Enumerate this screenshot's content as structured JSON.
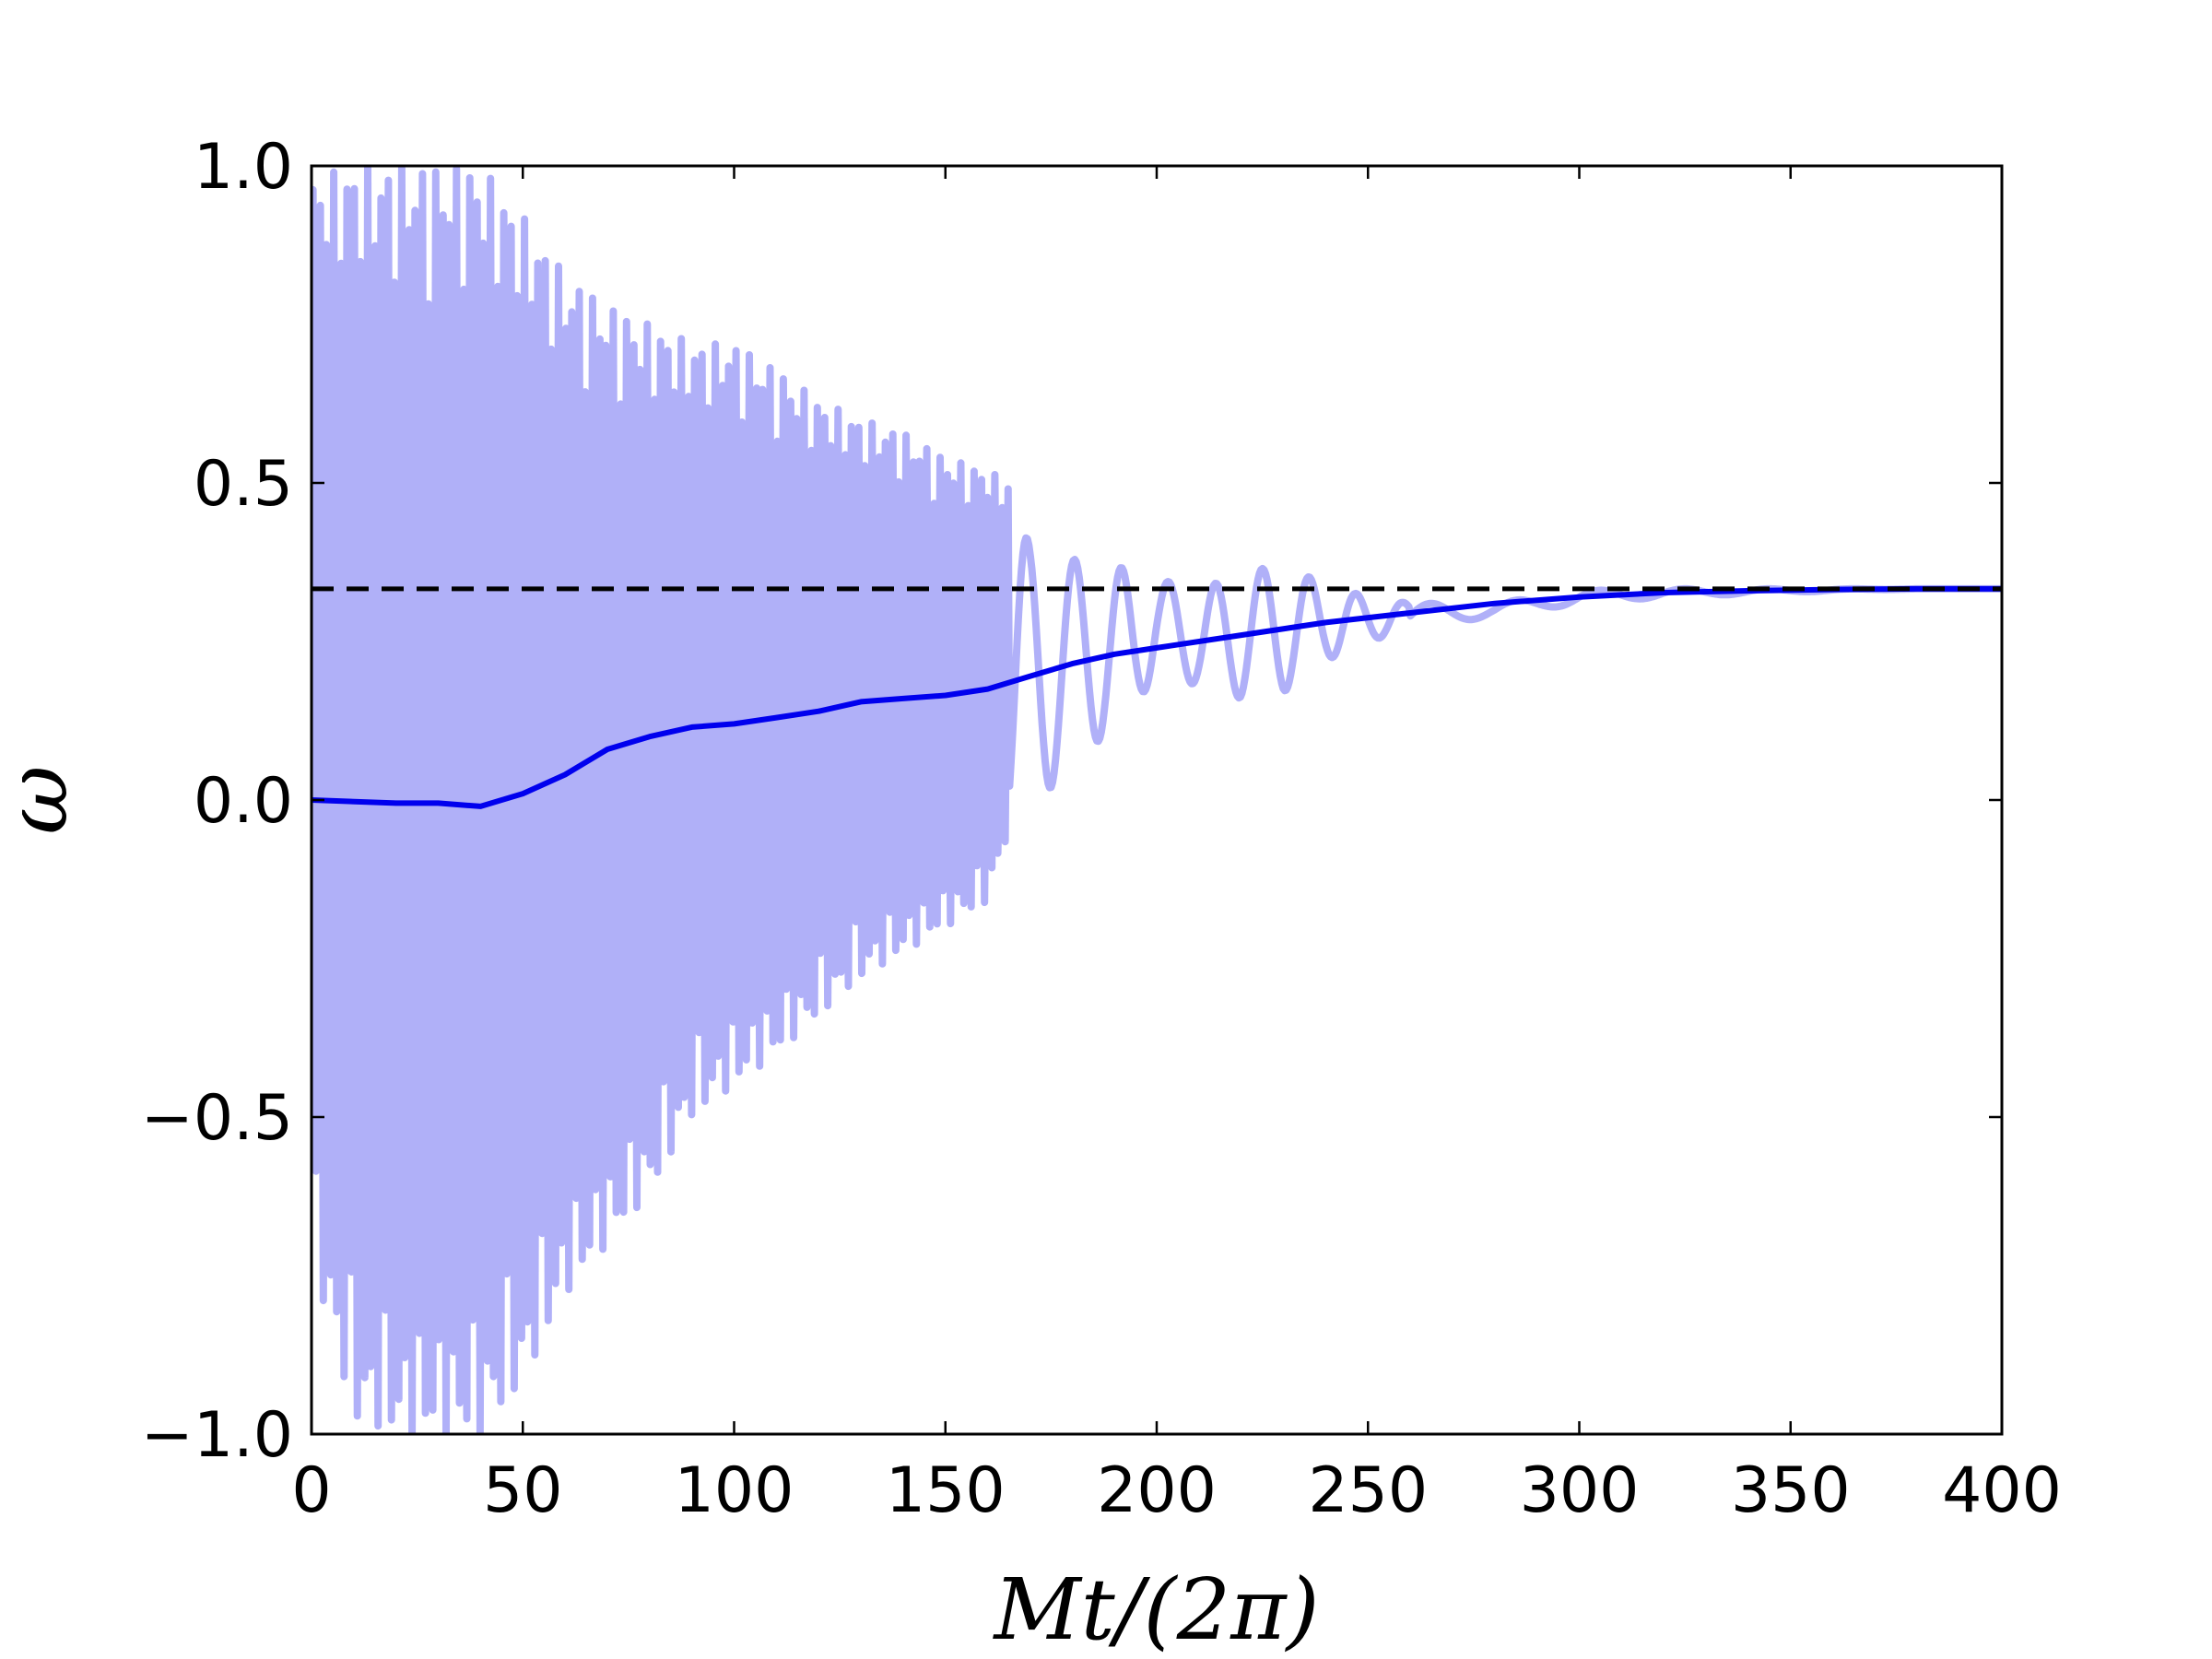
{
  "chart_data": {
    "type": "line",
    "title": "",
    "xlabel": "Mt/(2π)",
    "ylabel": "ω",
    "xlim": [
      0,
      400
    ],
    "ylim": [
      -1.0,
      1.0
    ],
    "xticks": [
      0,
      50,
      100,
      150,
      200,
      250,
      300,
      350,
      400
    ],
    "xtick_labels": [
      "0",
      "50",
      "100",
      "150",
      "200",
      "250",
      "300",
      "350",
      "400"
    ],
    "yticks": [
      -1.0,
      -0.5,
      0.0,
      0.5,
      1.0
    ],
    "ytick_labels": [
      "−1.0",
      "−0.5",
      "0.0",
      "0.5",
      "1.0"
    ],
    "grid": false,
    "legend": "none",
    "colors": {
      "oscillation": "#b0b0f8",
      "average": "#0000ee",
      "reference": "#000000"
    },
    "series": [
      {
        "role": "oscillating",
        "style": "thick light-blue oscillation",
        "envelope": {
          "x": [
            0,
            10,
            20,
            30,
            40,
            50,
            60,
            70,
            80,
            90,
            100,
            110,
            120,
            130,
            140,
            150,
            160,
            165,
            170,
            180,
            190,
            200,
            210,
            220,
            230,
            240,
            250,
            260,
            270,
            280,
            290,
            300,
            320,
            340,
            360,
            380,
            400
          ],
          "upper": [
            0.98,
            1.0,
            1.0,
            1.0,
            1.0,
            0.92,
            0.83,
            0.78,
            0.75,
            0.72,
            0.72,
            0.68,
            0.63,
            0.6,
            0.58,
            0.54,
            0.52,
            0.5,
            0.4,
            0.38,
            0.37,
            0.35,
            0.33,
            0.36,
            0.37,
            0.34,
            0.32,
            0.31,
            0.31,
            0.31,
            0.32,
            0.33,
            0.333,
            0.333,
            0.333,
            0.333,
            0.333
          ],
          "lower": [
            -0.72,
            -0.98,
            -1.0,
            -1.0,
            -1.0,
            -0.92,
            -0.78,
            -0.7,
            -0.62,
            -0.5,
            -0.45,
            -0.4,
            -0.34,
            -0.28,
            -0.24,
            -0.2,
            -0.16,
            -0.05,
            -0.04,
            0.08,
            0.1,
            0.2,
            0.18,
            0.16,
            0.17,
            0.22,
            0.25,
            0.27,
            0.28,
            0.29,
            0.3,
            0.31,
            0.32,
            0.325,
            0.33,
            0.333,
            0.333
          ]
        }
      },
      {
        "role": "average",
        "style": "solid dark-blue line",
        "x": [
          0,
          20,
          30,
          40,
          50,
          60,
          70,
          80,
          90,
          100,
          110,
          120,
          130,
          140,
          150,
          160,
          170,
          180,
          190,
          200,
          220,
          240,
          260,
          280,
          300,
          320,
          340,
          360,
          380,
          400
        ],
        "y": [
          0.0,
          -0.005,
          -0.005,
          -0.01,
          0.01,
          0.04,
          0.08,
          0.1,
          0.115,
          0.12,
          0.13,
          0.14,
          0.155,
          0.16,
          0.165,
          0.175,
          0.195,
          0.215,
          0.23,
          0.24,
          0.26,
          0.28,
          0.295,
          0.31,
          0.32,
          0.327,
          0.33,
          0.332,
          0.333,
          0.333
        ]
      },
      {
        "role": "reference",
        "style": "dashed black horizontal line",
        "x": [
          0,
          400
        ],
        "y": [
          0.333,
          0.333
        ]
      }
    ]
  }
}
